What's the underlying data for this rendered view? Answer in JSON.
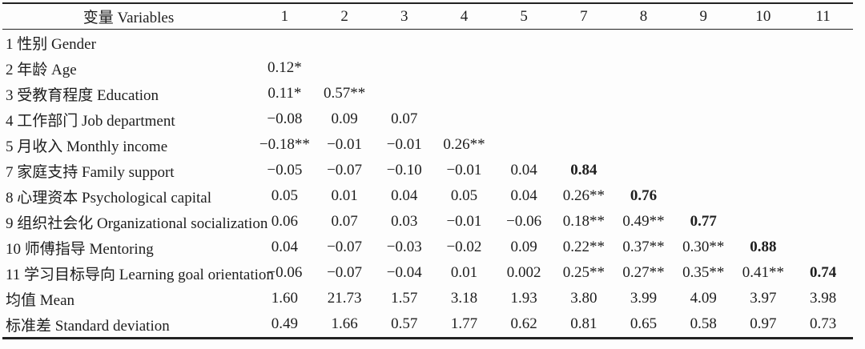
{
  "table": {
    "header": {
      "variables_label": "变量 Variables",
      "columns": [
        "1",
        "2",
        "3",
        "4",
        "5",
        "7",
        "8",
        "9",
        "10",
        "11"
      ]
    },
    "rows": [
      {
        "label": "1 性别 Gender",
        "values": [
          "",
          "",
          "",
          "",
          "",
          "",
          "",
          "",
          "",
          ""
        ]
      },
      {
        "label": "2 年龄 Age",
        "values": [
          "0.12*",
          "",
          "",
          "",
          "",
          "",
          "",
          "",
          "",
          ""
        ]
      },
      {
        "label": "3 受教育程度 Education",
        "values": [
          "0.11*",
          "0.57**",
          "",
          "",
          "",
          "",
          "",
          "",
          "",
          ""
        ]
      },
      {
        "label": "4 工作部门 Job department",
        "values": [
          "−0.08",
          "0.09",
          "0.07",
          "",
          "",
          "",
          "",
          "",
          "",
          ""
        ]
      },
      {
        "label": "5 月收入 Monthly income",
        "values": [
          "−0.18**",
          "−0.01",
          "−0.01",
          "0.26**",
          "",
          "",
          "",
          "",
          "",
          ""
        ]
      },
      {
        "label": "7 家庭支持 Family support",
        "values": [
          "−0.05",
          "−0.07",
          "−0.10",
          "−0.01",
          "0.04",
          "0.84",
          "",
          "",
          "",
          ""
        ],
        "bold_index": 5
      },
      {
        "label": "8 心理资本 Psychological capital",
        "values": [
          "0.05",
          "0.01",
          "0.04",
          "0.05",
          "0.04",
          "0.26**",
          "0.76",
          "",
          "",
          ""
        ],
        "bold_index": 6
      },
      {
        "label": "9 组织社会化 Organizational socialization",
        "values": [
          "0.06",
          "0.07",
          "0.03",
          "−0.01",
          "−0.06",
          "0.18**",
          "0.49**",
          "0.77",
          "",
          ""
        ],
        "bold_index": 7
      },
      {
        "label": "10 师傅指导 Mentoring",
        "values": [
          "0.04",
          "−0.07",
          "−0.03",
          "−0.02",
          "0.09",
          "0.22**",
          "0.37**",
          "0.30**",
          "0.88",
          ""
        ],
        "bold_index": 8
      },
      {
        "label": "11 学习目标导向 Learning goal orientation",
        "values": [
          "−0.06",
          "−0.07",
          "−0.04",
          "0.01",
          "0.002",
          "0.25**",
          "0.27**",
          "0.35**",
          "0.41**",
          "0.74"
        ],
        "bold_index": 9
      },
      {
        "label": "均值 Mean",
        "values": [
          "1.60",
          "21.73",
          "1.57",
          "3.18",
          "1.93",
          "3.80",
          "3.99",
          "4.09",
          "3.97",
          "3.98"
        ]
      },
      {
        "label": "标准差 Standard deviation",
        "values": [
          "0.49",
          "1.66",
          "0.57",
          "1.77",
          "0.62",
          "0.81",
          "0.65",
          "0.58",
          "0.97",
          "0.73"
        ]
      }
    ]
  },
  "colors": {
    "background": "#fdfdfd",
    "text": "#1e1e1e",
    "rule": "#222222"
  }
}
